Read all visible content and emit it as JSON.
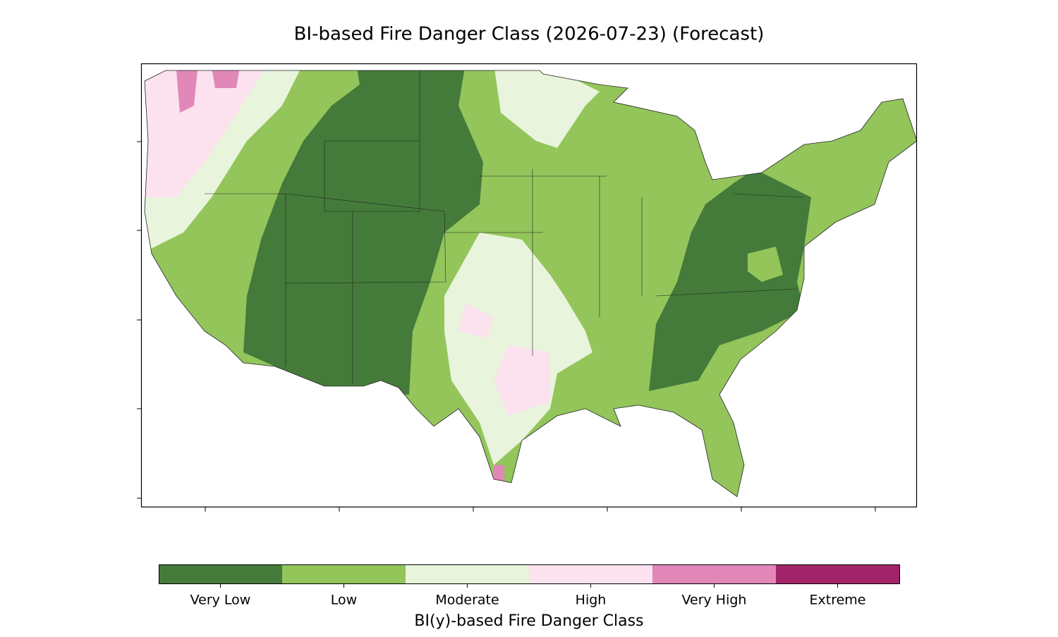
{
  "title": "BI-based Fire Danger Class (2026-07-23) (Forecast)",
  "colorbar": {
    "label": "BI(y)-based Fire Danger Class",
    "classes": [
      {
        "label": "Very Low",
        "color": "#447b3a"
      },
      {
        "label": "Low",
        "color": "#93c55b"
      },
      {
        "label": "Moderate",
        "color": "#e9f4dc"
      },
      {
        "label": "High",
        "color": "#fbe2ee"
      },
      {
        "label": "Very High",
        "color": "#e188b9"
      },
      {
        "label": "Extreme",
        "color": "#a22468"
      }
    ]
  }
}
